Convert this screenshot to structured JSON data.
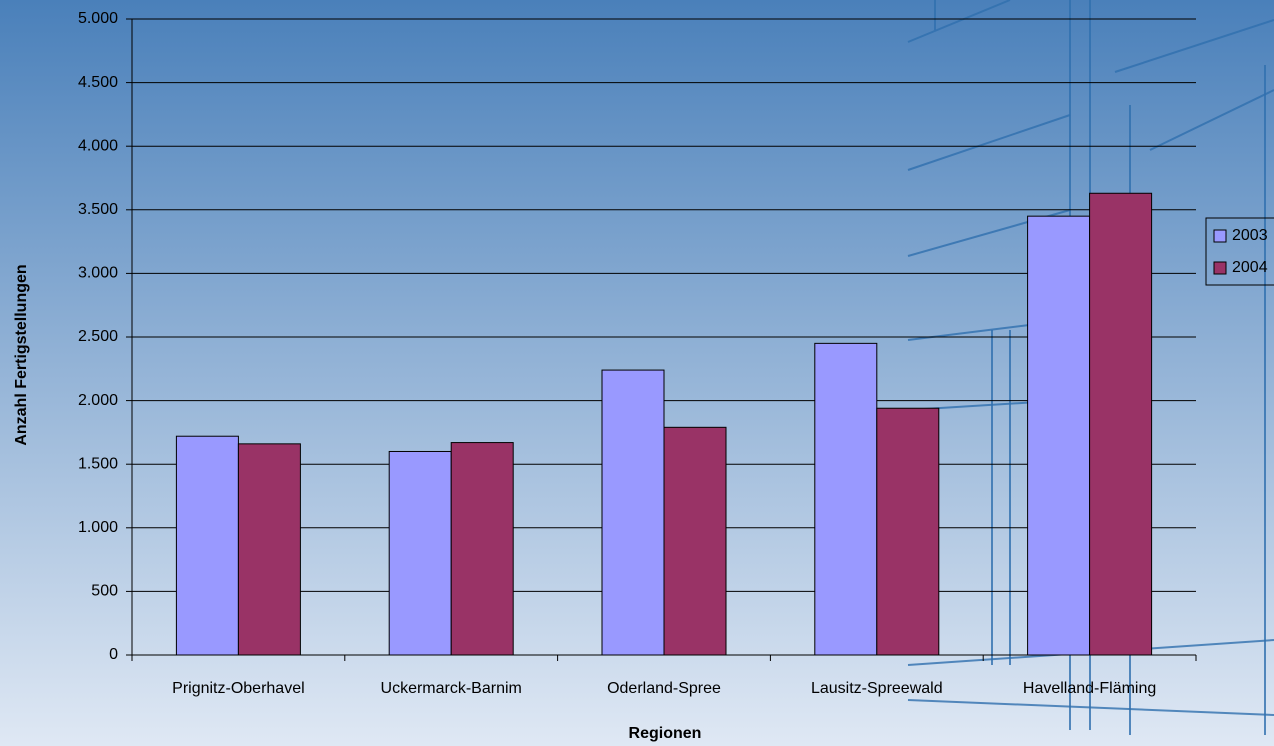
{
  "chart_data": {
    "type": "bar",
    "x_label": "Regionen",
    "y_label": "Anzahl Fertigstellungen",
    "categories": [
      "Prignitz-Oberhavel",
      "Uckermarck-Barnim",
      "Oderland-Spree",
      "Lausitz-Spreewald",
      "Havelland-Fläming"
    ],
    "series": [
      {
        "name": "2003",
        "color": "#9999ff",
        "values": [
          1720,
          1600,
          2240,
          2450,
          3450
        ]
      },
      {
        "name": "2004",
        "color": "#993366",
        "values": [
          1660,
          1670,
          1790,
          1940,
          3630
        ]
      }
    ],
    "ylim": [
      0,
      5000
    ],
    "yticks": [
      0,
      500,
      {
        "value": 1000,
        "label": "1.000"
      },
      {
        "value": 1500,
        "label": "1.500"
      },
      {
        "value": 2000,
        "label": "2.000"
      },
      {
        "value": 2500,
        "label": "2.500"
      },
      {
        "value": 3000,
        "label": "3.000"
      },
      {
        "value": 3500,
        "label": "3.500"
      },
      {
        "value": 4000,
        "label": "4.000"
      },
      {
        "value": 4500,
        "label": "4.500"
      },
      {
        "value": 5000,
        "label": "5.000"
      }
    ],
    "grid": true,
    "legend": "right"
  }
}
